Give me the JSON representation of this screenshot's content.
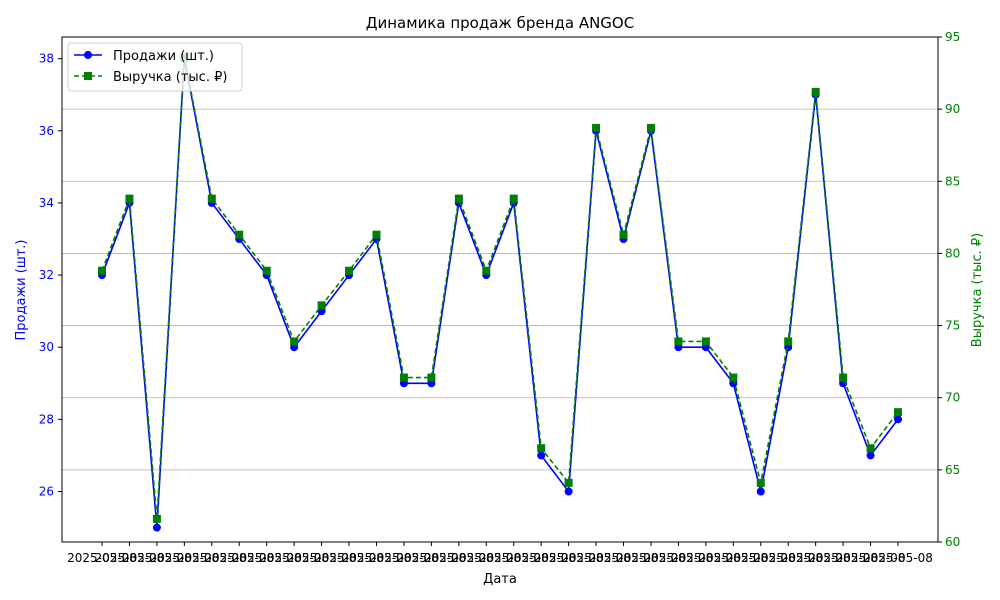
{
  "chart_data": {
    "type": "line",
    "title": "Динамика продаж бренда ANGOC",
    "xlabel": "Дата",
    "ylabel_left": "Продажи (шт.)",
    "ylabel_right": "Выручка (тыс. ₽)",
    "left_color": "#0000ff",
    "right_color": "#008000",
    "ylim_left": [
      24.6,
      38.6
    ],
    "ylim_right": [
      60,
      95
    ],
    "yticks_left": [
      26,
      28,
      30,
      32,
      34,
      36,
      38
    ],
    "yticks_right": [
      60,
      65,
      70,
      75,
      80,
      85,
      90,
      95
    ],
    "grid": "horizontal at right-axis ticks",
    "legend_position": "top-left",
    "x_overlapping_labels": [
      "2025-05-08",
      "2025-05-08",
      "2025-05-08",
      "2025-05-08",
      "2025-05-08",
      "2025-05-08",
      "2025-05-08",
      "2025-05-08",
      "2025-05-08",
      "2025-05-08",
      "2025-05-08",
      "2025-05-08",
      "2025-05-08",
      "2025-05-08",
      "2025-05-08",
      "2025-05-08",
      "2025-05-08",
      "2025-05-08",
      "2025-05-08",
      "2025-05-08",
      "2025-05-08",
      "2025-05-08",
      "2025-05-08",
      "2025-05-08",
      "2025-05-08",
      "2025-05-08",
      "2025-05-08",
      "2025-05-08",
      "2025-05-08",
      "2025-05-08"
    ],
    "series": [
      {
        "name": "Продажи (шт.)",
        "axis": "left",
        "color": "#0000ff",
        "values": [
          32,
          34,
          25,
          38,
          34,
          33,
          32,
          30,
          31,
          32,
          33,
          29,
          29,
          34,
          32,
          34,
          27,
          26,
          36,
          33,
          36,
          30,
          30,
          29,
          26,
          30,
          37,
          29,
          27,
          28
        ]
      },
      {
        "name": "Выручка (тыс. ₽)",
        "axis": "right",
        "color": "#008000",
        "values": [
          78.8,
          83.8,
          61.6,
          93.6,
          83.8,
          81.3,
          78.8,
          73.9,
          76.4,
          78.8,
          81.3,
          71.4,
          71.4,
          83.8,
          78.8,
          83.8,
          66.5,
          64.1,
          88.7,
          81.3,
          88.7,
          73.9,
          73.9,
          71.4,
          64.1,
          73.9,
          91.2,
          71.4,
          66.5,
          69.0
        ]
      }
    ]
  }
}
